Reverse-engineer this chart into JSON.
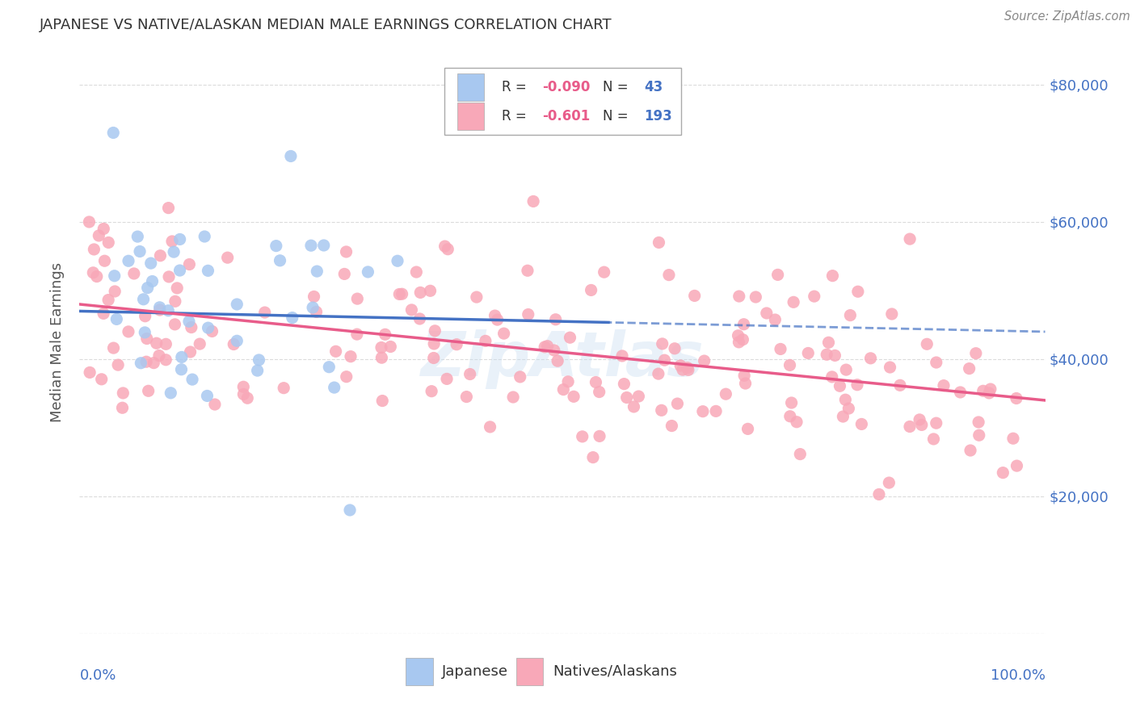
{
  "title": "JAPANESE VS NATIVE/ALASKAN MEDIAN MALE EARNINGS CORRELATION CHART",
  "source": "Source: ZipAtlas.com",
  "ylabel": "Median Male Earnings",
  "xmin": 0.0,
  "xmax": 1.0,
  "ymin": 0,
  "ymax": 85000,
  "japanese_color": "#a8c8f0",
  "native_color": "#f8a8b8",
  "trend_japanese_color": "#4472c4",
  "trend_native_color": "#e85c8a",
  "axis_label_color": "#4472c4",
  "title_color": "#333333",
  "watermark": "ZipAtlas",
  "japanese_R": -0.09,
  "japanese_N": 43,
  "native_R": -0.601,
  "native_N": 193,
  "japanese_intercept": 47000,
  "japanese_slope": -3000,
  "native_intercept": 48000,
  "native_slope": -14000,
  "background_color": "#ffffff",
  "grid_color": "#cccccc"
}
